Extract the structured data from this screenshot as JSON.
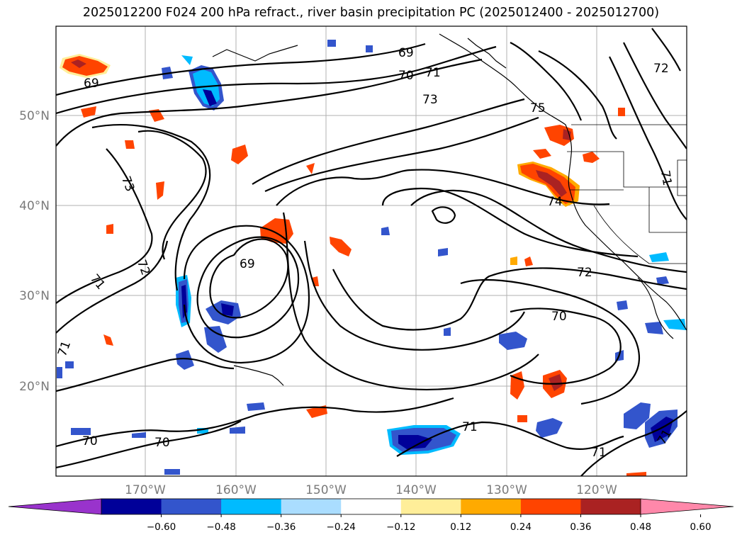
{
  "title": "2025012200 F024 200 hPa refract., river basin precipitation PC (2025012400 - 2025012700)",
  "lat_labels": [
    "50°N",
    "40°N",
    "30°N",
    "20°N"
  ],
  "lon_labels": [
    "170°W",
    "160°W",
    "150°W",
    "140°W",
    "130°W",
    "120°W"
  ],
  "colorbar": {
    "colors": [
      "#9933cc",
      "#000099",
      "#3355cc",
      "#00bbff",
      "#aaddff",
      "#ffffff",
      "#ffee99",
      "#ffaa00",
      "#ff4400",
      "#aa2222",
      "#ff88aa"
    ],
    "tick_labels": [
      "−0.60",
      "−0.48",
      "−0.36",
      "−0.24",
      "−0.12",
      "0.12",
      "0.24",
      "0.36",
      "0.48",
      "0.60"
    ]
  },
  "contour_labels": [
    "69",
    "69",
    "70",
    "71",
    "73",
    "75",
    "72",
    "73",
    "72",
    "71",
    "69",
    "72",
    "74",
    "71",
    "70",
    "70",
    "70",
    "71",
    "71",
    "71",
    "71"
  ]
}
